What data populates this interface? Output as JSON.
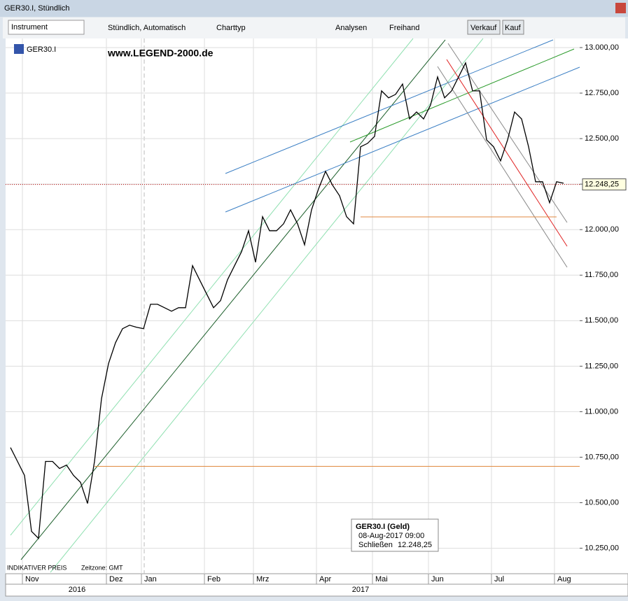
{
  "window": {
    "title": "GER30.I, Stündlich"
  },
  "toolbar": {
    "instrument": "Instrument",
    "interval": "Stündlich, Automatisch",
    "chart_type": "Charttyp",
    "analyses": "Analysen",
    "freehand": "Freihand",
    "sell": "Verkauf",
    "buy": "Kauf"
  },
  "chart_data": {
    "type": "line",
    "symbol": "GER30.I",
    "watermark": "www.LEGEND-2000.de",
    "footer_left": "INDIKATIVER PREIS",
    "timezone": "Zeitzone: GMT",
    "categories": [
      null,
      null,
      "Nov",
      null,
      null,
      null,
      null,
      null,
      null,
      null,
      null,
      null,
      null,
      null,
      "Dez",
      null,
      null,
      null,
      null,
      "Jan",
      null,
      null,
      null,
      null,
      null,
      null,
      null,
      null,
      "Feb",
      null,
      null,
      null,
      null,
      null,
      null,
      "Mrz",
      null,
      null,
      null,
      null,
      null,
      null,
      null,
      null,
      "Apr",
      null,
      null,
      null,
      null,
      null,
      null,
      null,
      "Mai",
      null,
      null,
      null,
      null,
      null,
      null,
      null,
      "Jun",
      null,
      null,
      null,
      null,
      null,
      null,
      null,
      null,
      "Jul",
      null,
      null,
      null,
      null,
      null,
      null,
      null,
      null,
      "Aug",
      null
    ],
    "year_labels": [
      "2016",
      "2017"
    ],
    "series": [
      {
        "name": "GER30.I",
        "color": "#000000",
        "values": [
          10803,
          10727,
          10650,
          10343,
          10304,
          10727,
          10727,
          10688,
          10707,
          10650,
          10612,
          10496,
          10727,
          11072,
          11264,
          11379,
          11456,
          11475,
          11464,
          11456,
          11590,
          11590,
          11571,
          11552,
          11571,
          11571,
          11802,
          11725,
          11648,
          11571,
          11610,
          11725,
          11802,
          11879,
          11994,
          11821,
          12071,
          11994,
          11994,
          12032,
          12109,
          12032,
          11917,
          12109,
          12224,
          12320,
          12244,
          12186,
          12071,
          12032,
          12455,
          12474,
          12512,
          12762,
          12724,
          12743,
          12800,
          12608,
          12646,
          12608,
          12685,
          12839,
          12724,
          12762,
          12839,
          12916,
          12762,
          12762,
          12493,
          12455,
          12378,
          12493,
          12646,
          12608,
          12455,
          12263,
          12263,
          12148,
          12263,
          12255
        ]
      }
    ],
    "ylim": [
      10110,
      13050
    ],
    "yticks": [
      {
        "value": 10250,
        "label": "10.250,00"
      },
      {
        "value": 10500,
        "label": "10.500,00"
      },
      {
        "value": 10750,
        "label": "10.750,00"
      },
      {
        "value": 11000,
        "label": "11.000,00"
      },
      {
        "value": 11250,
        "label": "11.250,00"
      },
      {
        "value": 11500,
        "label": "11.500,00"
      },
      {
        "value": 11750,
        "label": "11.750,00"
      },
      {
        "value": 12000,
        "label": "12.000,00"
      },
      {
        "value": 12250,
        "label": "12.250,00"
      },
      {
        "value": 12500,
        "label": "12.500,00"
      },
      {
        "value": 12750,
        "label": "12.750,00"
      },
      {
        "value": 13000,
        "label": "13.000,00"
      }
    ],
    "grid": true,
    "last_price": {
      "value": 12248.25,
      "label": "12.248,25"
    },
    "levels": [
      12070,
      10700
    ],
    "tooltip": {
      "title": "GER30.I (Geld)",
      "date": "08-Aug-2017 09:00",
      "field": "Schließen",
      "value": "12.248,25"
    }
  }
}
